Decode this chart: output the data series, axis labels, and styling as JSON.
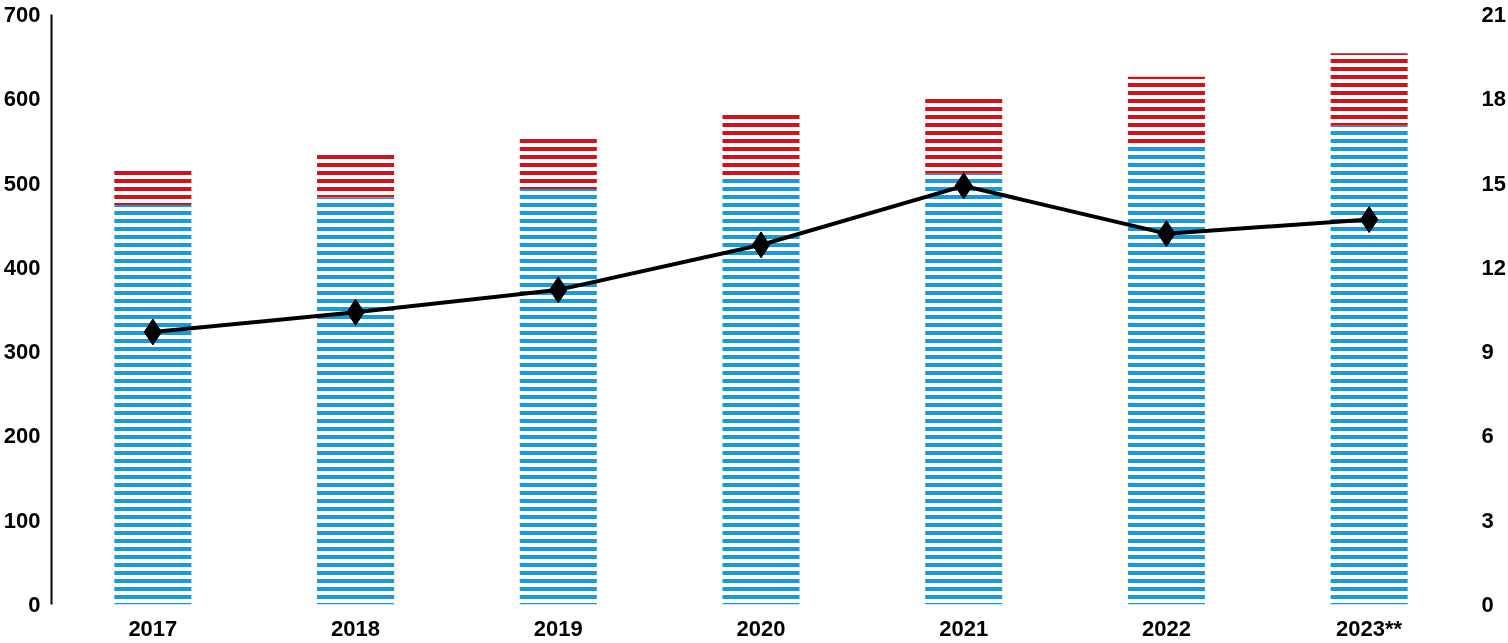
{
  "chart_data": {
    "type": "bar",
    "stacked": true,
    "categories": [
      "2017",
      "2018",
      "2019",
      "2020",
      "2021",
      "2022",
      "2023**"
    ],
    "series": [
      {
        "color": "#1a9ad6",
        "values": [
          474,
          483,
          493,
          508,
          511,
          547,
          568
        ]
      },
      {
        "color": "#d0121b",
        "values": [
          43,
          53,
          60,
          73,
          90,
          79,
          86
        ]
      },
      {
        "type": "line",
        "axis": "y2",
        "color": "#000000",
        "marker": "diamond",
        "line_style": "solid",
        "values": [
          9.7,
          10.4,
          11.2,
          12.8,
          14.9,
          13.2,
          13.7
        ]
      }
    ],
    "ylim": [
      0,
      700
    ],
    "yticks": [
      0,
      100,
      200,
      300,
      400,
      500,
      600,
      700
    ],
    "y2lim": [
      0,
      21
    ],
    "y2ticks": [
      0,
      3,
      6,
      9,
      12,
      15,
      18,
      21
    ],
    "grid": false
  }
}
